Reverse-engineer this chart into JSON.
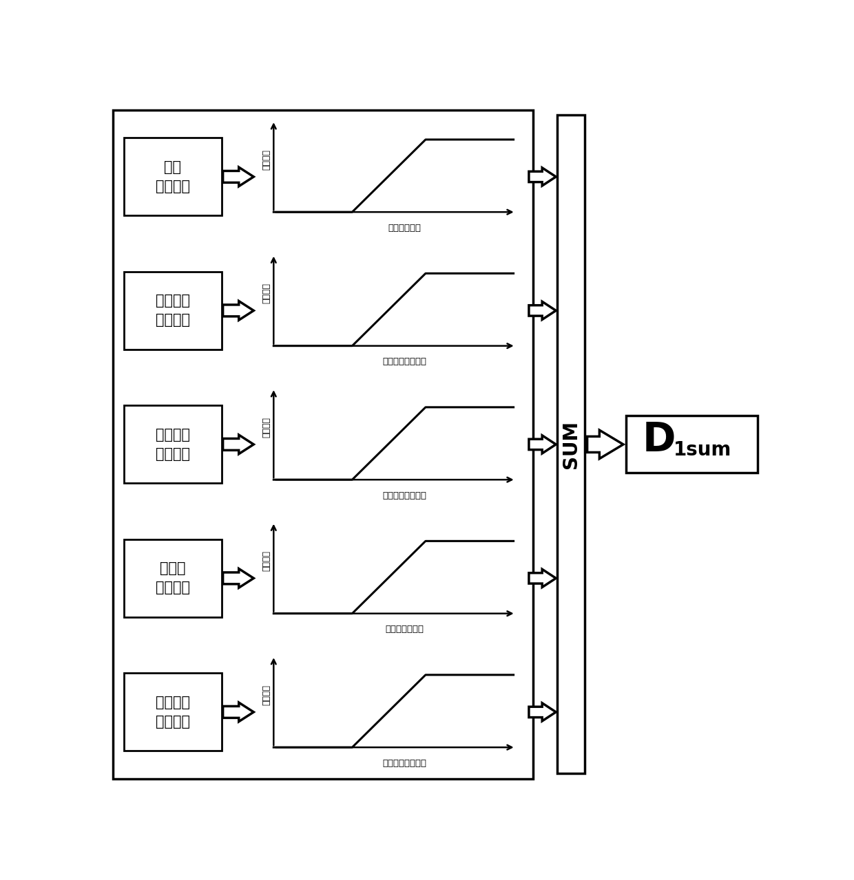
{
  "bg_color": "#ffffff",
  "border_color": "#000000",
  "rows": [
    {
      "box_text": "回转\n先导压力",
      "xlabel": "回转先导压力",
      "ylabel": "泵次排量"
    },
    {
      "box_text": "斗杆外摆\n先导压力",
      "xlabel": "斗杆外摆先导压力",
      "ylabel": "泵次排量"
    },
    {
      "box_text": "斗杆回收\n先导压力",
      "xlabel": "斗杆回收先导压力",
      "ylabel": "泵次排量"
    },
    {
      "box_text": "左行走\n先导压力",
      "xlabel": "左行走先导压力",
      "ylabel": "泵次排量"
    },
    {
      "box_text": "动臂举升\n先导压力",
      "xlabel": "动臂举升先导压力",
      "ylabel": "泵次排量"
    }
  ],
  "sum_label": "SUM",
  "output_label_main": "D",
  "output_label_sub": "1sum",
  "line_color": "#000000",
  "text_color": "#000000"
}
